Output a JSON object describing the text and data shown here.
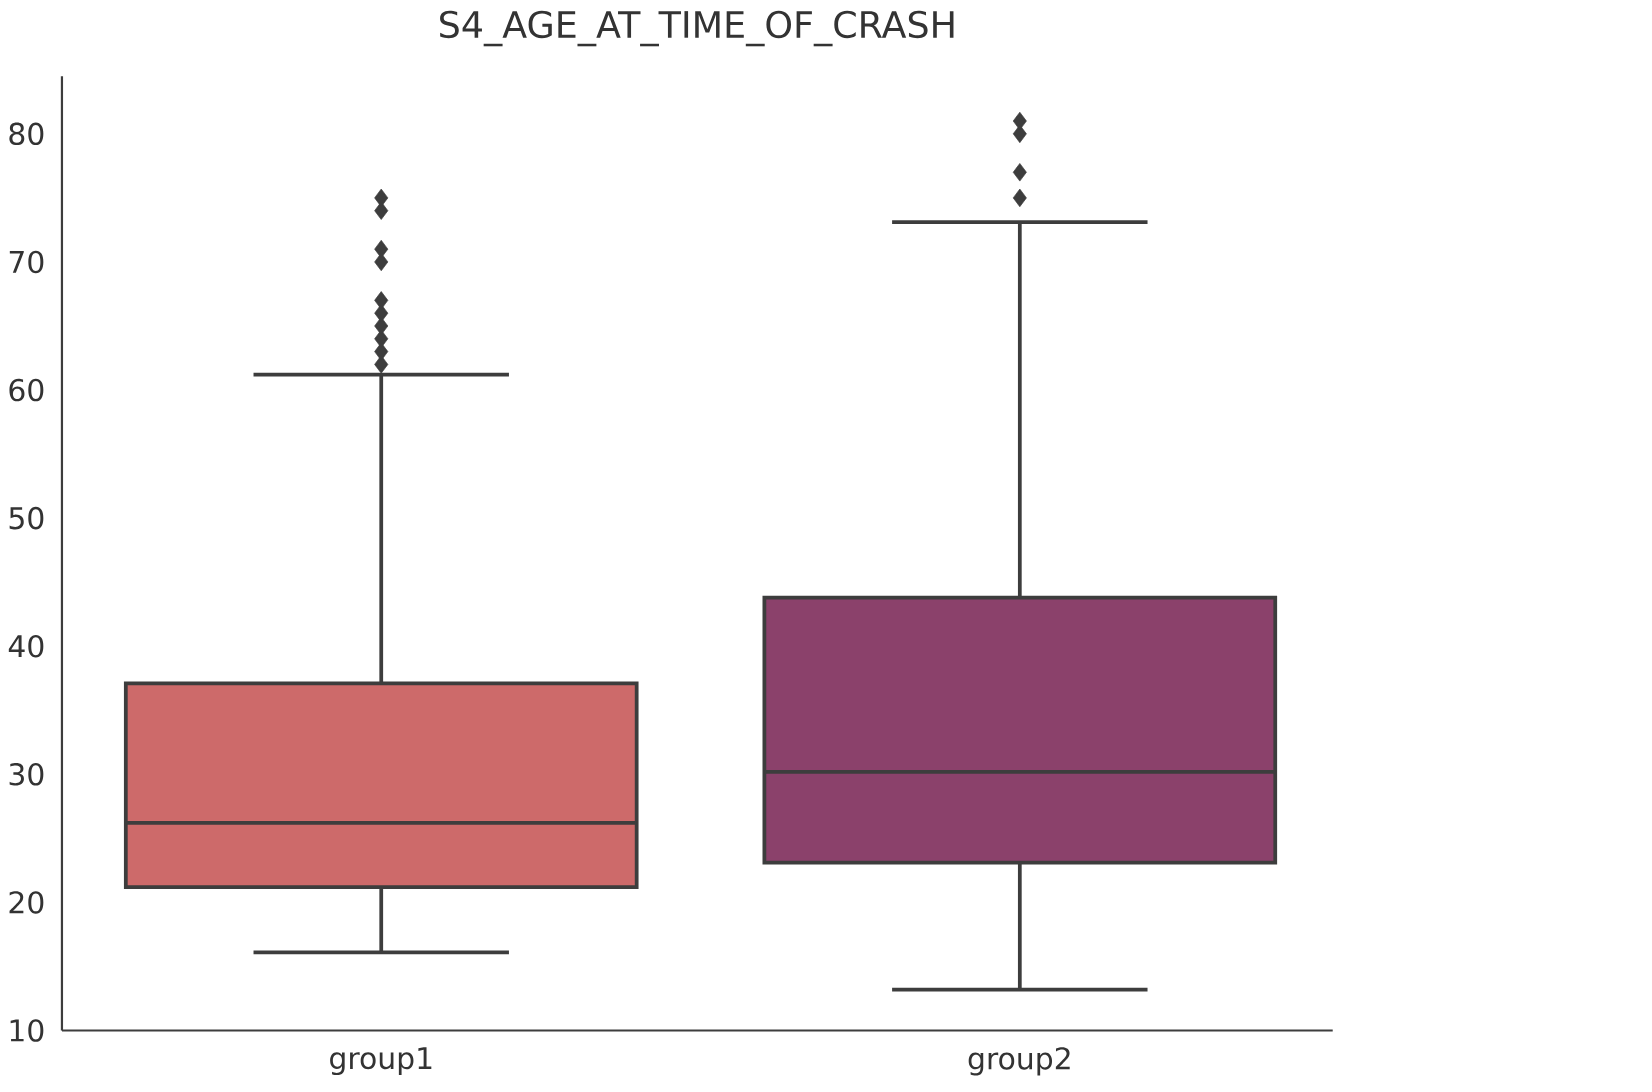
{
  "chart_data": {
    "type": "box",
    "title": "S4_AGE_AT_TIME_OF_CRASH",
    "categories": [
      "group1",
      "group2"
    ],
    "colors": [
      "#cd6a6a",
      "#8b416b"
    ],
    "boxes": [
      {
        "low": 16.1,
        "q1": 21.2,
        "median": 26.2,
        "q3": 37.1,
        "high": 61.2,
        "outliers": [
          62,
          63,
          64,
          65,
          66,
          67,
          70,
          71,
          74,
          75
        ]
      },
      {
        "low": 13.2,
        "q1": 23.1,
        "median": 30.2,
        "q3": 43.8,
        "high": 73.1,
        "outliers": [
          75,
          77,
          80,
          81
        ]
      }
    ],
    "ylim": [
      10,
      84.5
    ],
    "yticks": [
      10,
      20,
      30,
      40,
      50,
      60,
      70,
      80
    ],
    "grid": false,
    "marker": "diamond"
  }
}
